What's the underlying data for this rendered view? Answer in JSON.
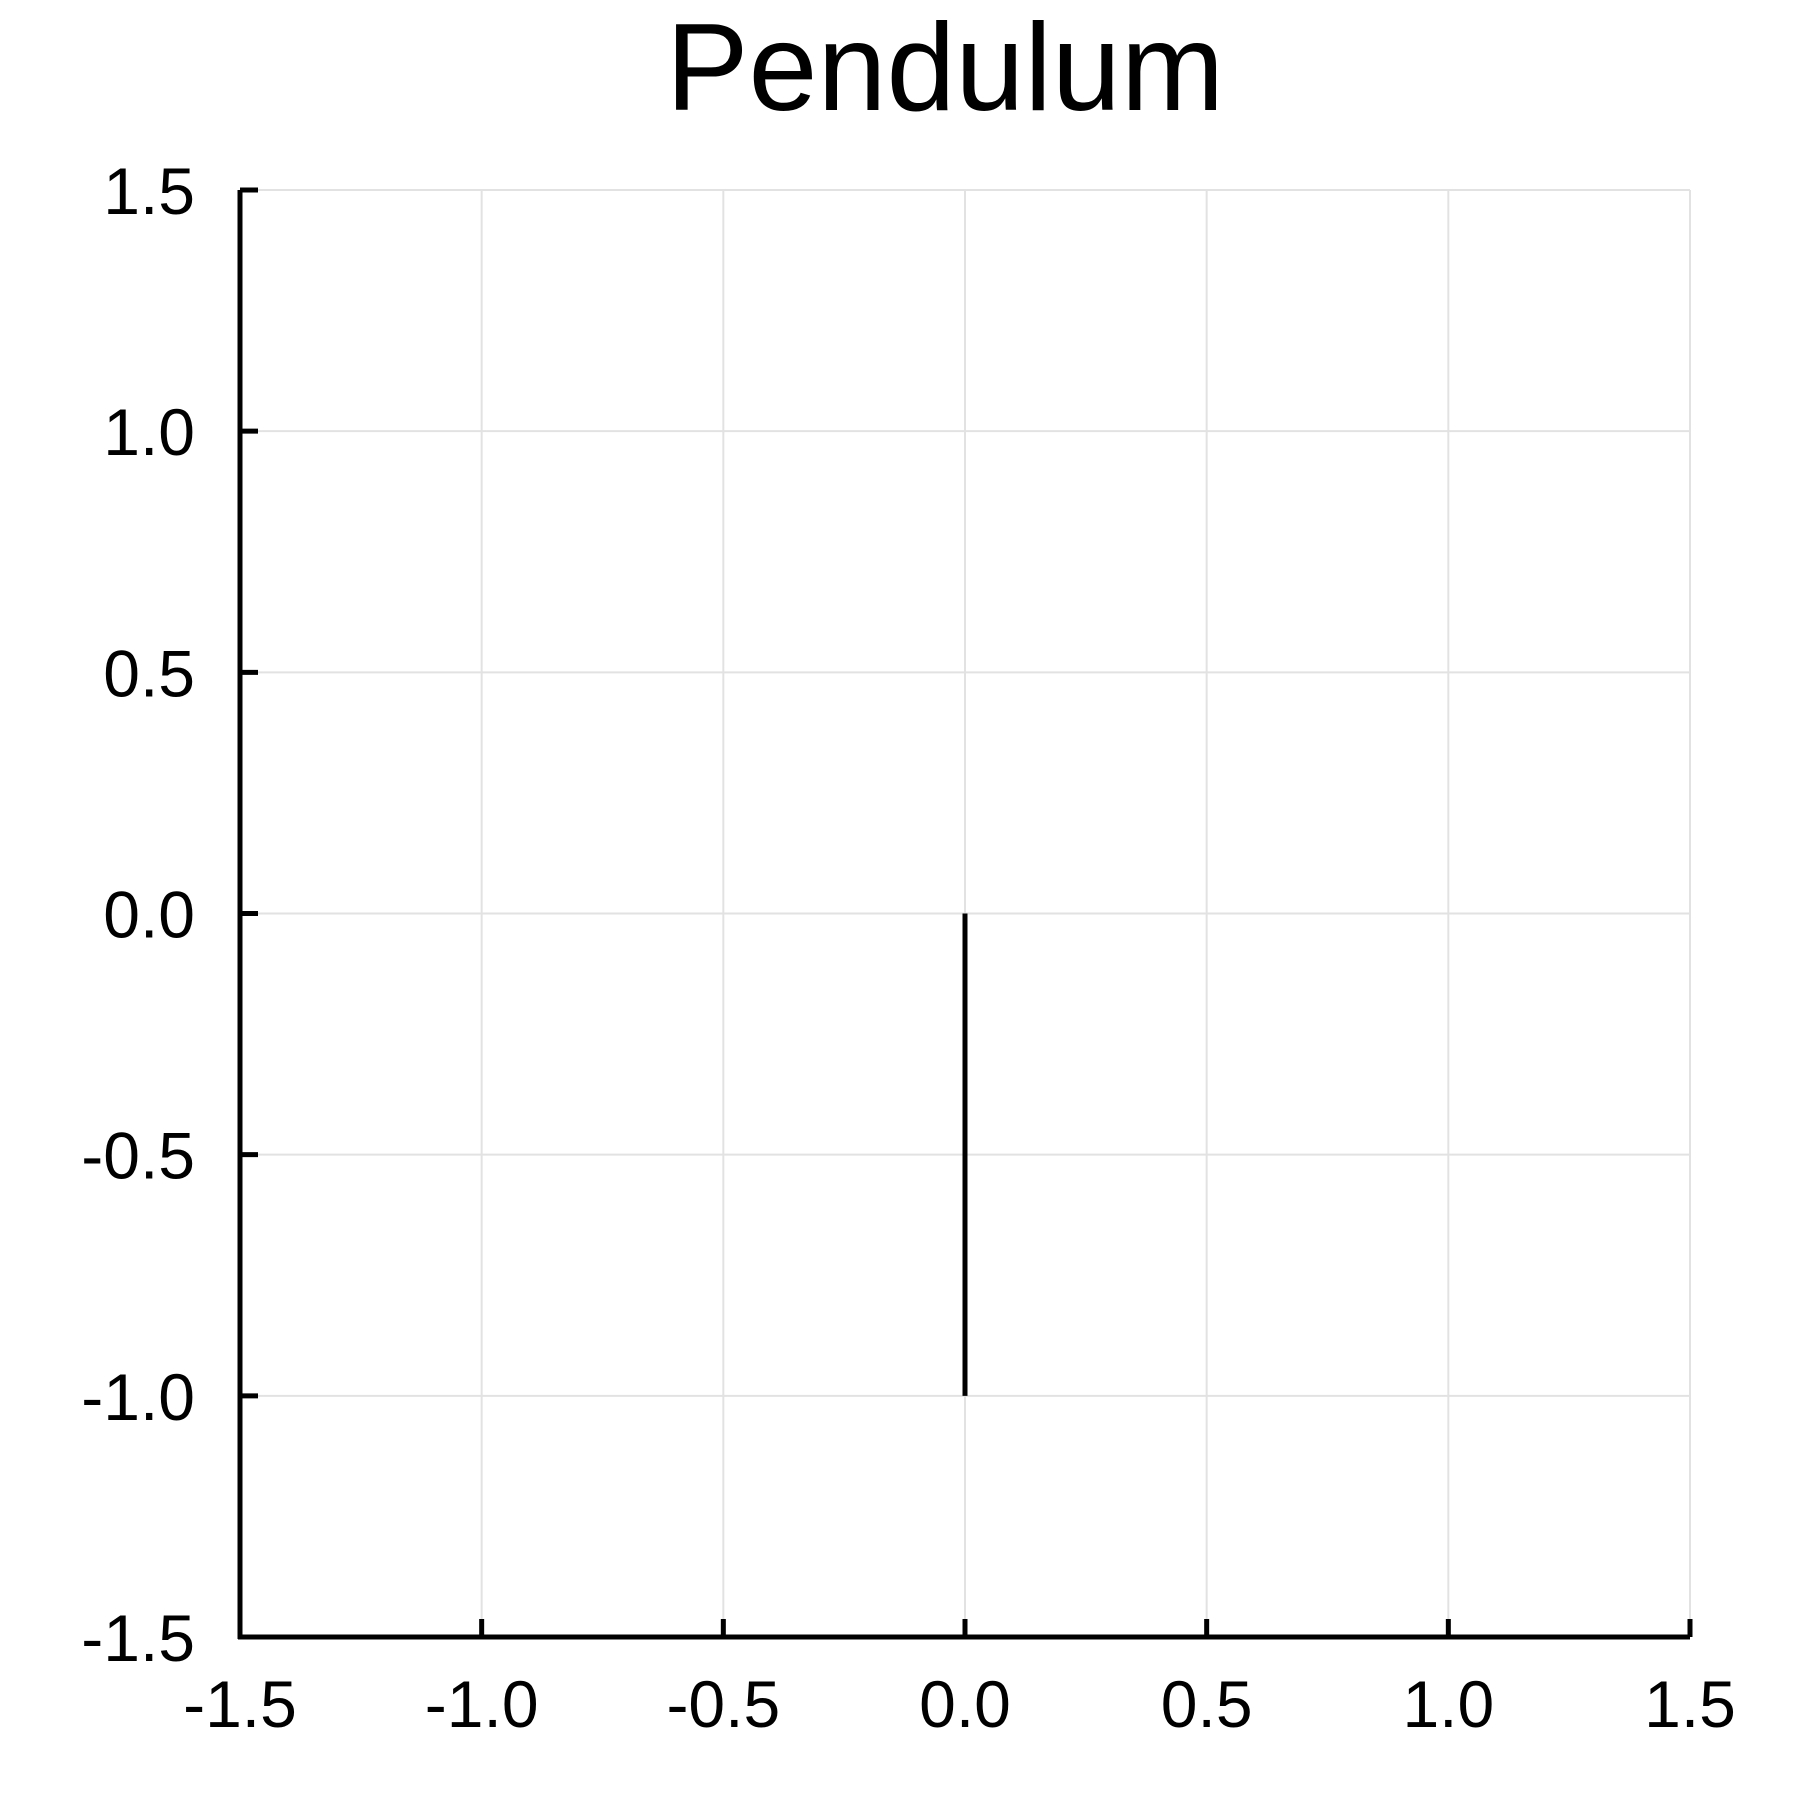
{
  "chart_data": {
    "type": "line",
    "title": "Pendulum",
    "xlabel": "",
    "ylabel": "",
    "xlim": [
      -1.5,
      1.5
    ],
    "ylim": [
      -1.5,
      1.5
    ],
    "xticks": [
      -1.5,
      -1.0,
      -0.5,
      0.0,
      0.5,
      1.0,
      1.5
    ],
    "yticks": [
      -1.5,
      -1.0,
      -0.5,
      0.0,
      0.5,
      1.0,
      1.5
    ],
    "xtick_labels": [
      "-1.5",
      "-1.0",
      "-0.5",
      "0.0",
      "0.5",
      "1.0",
      "1.5"
    ],
    "ytick_labels": [
      "-1.5",
      "-1.0",
      "-0.5",
      "0.0",
      "0.5",
      "1.0",
      "1.5"
    ],
    "grid": true,
    "legend": "none",
    "series": [
      {
        "x": [
          0.0,
          0.0
        ],
        "y": [
          0.0,
          -1.0
        ],
        "color": "#000000"
      }
    ]
  }
}
